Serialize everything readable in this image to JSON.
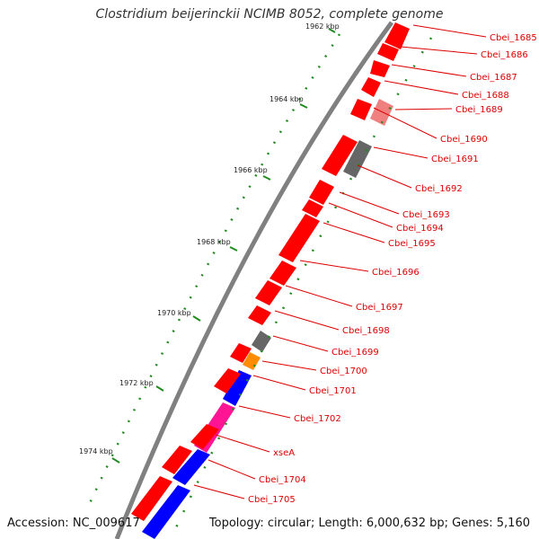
{
  "header": {
    "title": "Clostridium beijerinckii NCIMB 8052, complete genome"
  },
  "footer": {
    "accession": "Accession: NC_009617",
    "info": "Topology: circular; Length: 6,000,632 bp; Genes: 5,160"
  },
  "ruler": {
    "ticks": [
      "1962 kbp",
      "1964 kbp",
      "1966 kbp",
      "1968 kbp",
      "1970 kbp",
      "1972 kbp",
      "1974 kbp"
    ]
  },
  "genes": [
    {
      "label": "Cbei_1685",
      "color": "#ff0000"
    },
    {
      "label": "Cbei_1686",
      "color": "#ff0000"
    },
    {
      "label": "Cbei_1687",
      "color": "#ff0000"
    },
    {
      "label": "Cbei_1688",
      "color": "#ff0000"
    },
    {
      "label": "Cbei_1689",
      "color": "#f08080"
    },
    {
      "label": "Cbei_1690",
      "color": "#ff0000"
    },
    {
      "label": "Cbei_1691",
      "color": "#666666"
    },
    {
      "label": "Cbei_1692",
      "color": "#ff0000"
    },
    {
      "label": "Cbei_1693",
      "color": "#ff0000"
    },
    {
      "label": "Cbei_1694",
      "color": "#ff0000"
    },
    {
      "label": "Cbei_1695",
      "color": "#ff0000"
    },
    {
      "label": "Cbei_1696",
      "color": "#ff0000"
    },
    {
      "label": "Cbei_1697",
      "color": "#ff0000"
    },
    {
      "label": "Cbei_1698",
      "color": "#ff0000"
    },
    {
      "label": "Cbei_1699",
      "color": "#666666"
    },
    {
      "label": "Cbei_1700",
      "color": "#ff8c00"
    },
    {
      "label": "Cbei_1701",
      "color": "#0000ff"
    },
    {
      "label": "Cbei_1702",
      "color": "#ff1493"
    },
    {
      "label": "xseA",
      "color": "#ff1493"
    },
    {
      "label": "Cbei_1704",
      "color": "#0000ff"
    },
    {
      "label": "Cbei_1705",
      "color": "#0000ff"
    }
  ],
  "colors": {
    "forward_gene": "#ff0000",
    "label_line": "#dd0000",
    "backbone": "#808080",
    "ruler": "#228b22"
  }
}
